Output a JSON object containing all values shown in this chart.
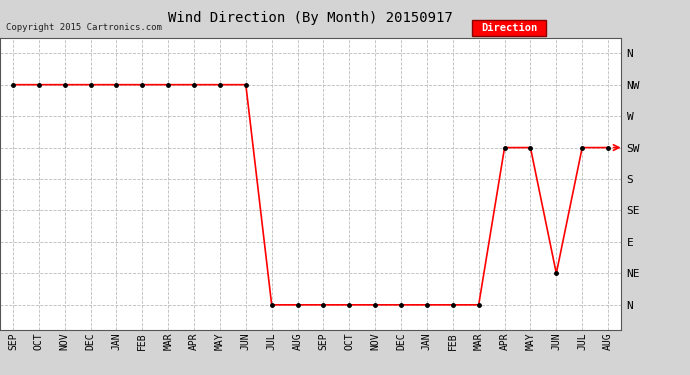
{
  "title": "Wind Direction (By Month) 20150917",
  "copyright": "Copyright 2015 Cartronics.com",
  "legend_label": "Direction",
  "legend_color": "#ff0000",
  "line_color": "#ff0000",
  "marker_color": "#000000",
  "fig_background": "#d4d4d4",
  "plot_background": "#ffffff",
  "x_labels": [
    "SEP",
    "OCT",
    "NOV",
    "DEC",
    "JAN",
    "FEB",
    "MAR",
    "APR",
    "MAY",
    "JUN",
    "JUL",
    "AUG",
    "SEP",
    "OCT",
    "NOV",
    "DEC",
    "JAN",
    "FEB",
    "MAR",
    "APR",
    "MAY",
    "JUN",
    "JUL",
    "AUG"
  ],
  "y_labels": [
    "N",
    "NW",
    "W",
    "SW",
    "S",
    "SE",
    "E",
    "NE",
    "N"
  ],
  "data_y": [
    1,
    1,
    1,
    1,
    1,
    1,
    1,
    1,
    1,
    1,
    8,
    8,
    8,
    8,
    8,
    8,
    8,
    8,
    8,
    3,
    3,
    7,
    3,
    3
  ]
}
